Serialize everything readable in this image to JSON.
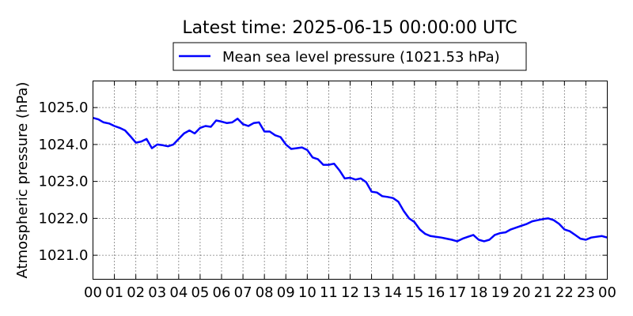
{
  "chart_data": {
    "type": "line",
    "title": "Latest time: 2025-06-15 00:00:00 UTC",
    "xlabel": "",
    "ylabel": "Atmospheric pressure (hPa)",
    "xlim": [
      0,
      24
    ],
    "ylim": [
      1020.35,
      1025.72
    ],
    "grid": true,
    "legend_position": "top-center",
    "x_tick_values": [
      0,
      1,
      2,
      3,
      4,
      5,
      6,
      7,
      8,
      9,
      10,
      11,
      12,
      13,
      14,
      15,
      16,
      17,
      18,
      19,
      20,
      21,
      22,
      23,
      24
    ],
    "x_tick_labels": [
      "00",
      "01",
      "02",
      "03",
      "04",
      "05",
      "06",
      "07",
      "08",
      "09",
      "10",
      "11",
      "12",
      "13",
      "14",
      "15",
      "16",
      "17",
      "18",
      "19",
      "20",
      "21",
      "22",
      "23",
      "00"
    ],
    "y_tick_values": [
      1021,
      1022,
      1023,
      1024,
      1025
    ],
    "y_tick_labels": [
      "1021.0",
      "1022.0",
      "1023.0",
      "1024.0",
      "1025.0"
    ],
    "series": [
      {
        "name": "Mean sea level pressure (1021.53 hPa)",
        "color": "#0000ff",
        "x": [
          0,
          0.25,
          0.5,
          0.75,
          1,
          1.25,
          1.5,
          1.75,
          2,
          2.25,
          2.5,
          2.75,
          3,
          3.25,
          3.5,
          3.75,
          4,
          4.25,
          4.5,
          4.75,
          5,
          5.25,
          5.5,
          5.75,
          6,
          6.25,
          6.5,
          6.75,
          7,
          7.25,
          7.5,
          7.75,
          8,
          8.25,
          8.5,
          8.75,
          9,
          9.25,
          9.5,
          9.75,
          10,
          10.25,
          10.5,
          10.75,
          11,
          11.25,
          11.5,
          11.75,
          12,
          12.25,
          12.5,
          12.75,
          13,
          13.25,
          13.5,
          13.75,
          14,
          14.25,
          14.5,
          14.75,
          15,
          15.25,
          15.5,
          15.75,
          16,
          16.25,
          16.5,
          16.75,
          17,
          17.25,
          17.5,
          17.75,
          18,
          18.25,
          18.5,
          18.75,
          19,
          19.25,
          19.5,
          19.75,
          20,
          20.25,
          20.5,
          20.75,
          21,
          21.25,
          21.5,
          21.75,
          22,
          22.25,
          22.5,
          22.75,
          23,
          23.25,
          23.5,
          23.75,
          24
        ],
        "y": [
          1024.72,
          1024.68,
          1024.6,
          1024.57,
          1024.5,
          1024.45,
          1024.38,
          1024.22,
          1024.05,
          1024.08,
          1024.15,
          1023.9,
          1024.0,
          1023.98,
          1023.95,
          1024.0,
          1024.15,
          1024.3,
          1024.38,
          1024.3,
          1024.45,
          1024.5,
          1024.48,
          1024.65,
          1024.62,
          1024.58,
          1024.6,
          1024.7,
          1024.55,
          1024.5,
          1024.58,
          1024.6,
          1024.35,
          1024.35,
          1024.25,
          1024.2,
          1024.0,
          1023.88,
          1023.9,
          1023.92,
          1023.85,
          1023.65,
          1023.6,
          1023.45,
          1023.45,
          1023.48,
          1023.3,
          1023.08,
          1023.1,
          1023.05,
          1023.08,
          1022.98,
          1022.72,
          1022.7,
          1022.6,
          1022.58,
          1022.55,
          1022.45,
          1022.2,
          1022.0,
          1021.9,
          1021.7,
          1021.58,
          1021.52,
          1021.5,
          1021.48,
          1021.45,
          1021.42,
          1021.38,
          1021.45,
          1021.5,
          1021.55,
          1021.42,
          1021.38,
          1021.42,
          1021.55,
          1021.6,
          1021.62,
          1021.7,
          1021.75,
          1021.8,
          1021.85,
          1021.92,
          1021.95,
          1021.98,
          1022.0,
          1021.95,
          1021.85,
          1021.7,
          1021.65,
          1021.55,
          1021.45,
          1021.42,
          1021.48,
          1021.5,
          1021.52,
          1021.48
        ]
      }
    ]
  }
}
